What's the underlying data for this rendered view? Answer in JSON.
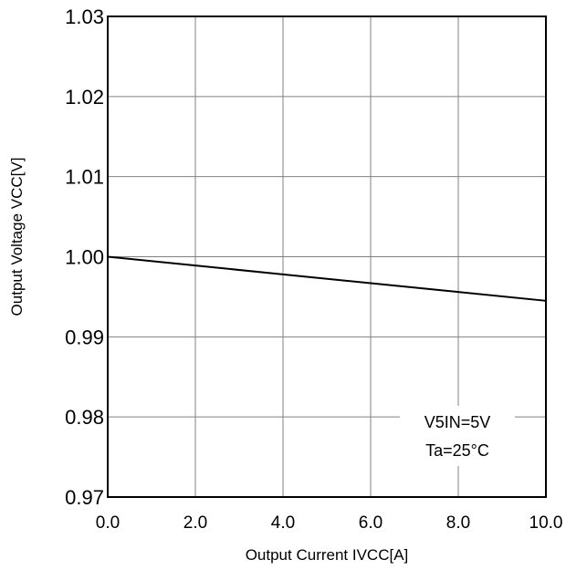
{
  "chart_data": {
    "type": "line",
    "xlabel": "Output Current IVCC[A]",
    "ylabel": "Output Voltage VCC[V]",
    "xlim": [
      0,
      10
    ],
    "ylim": [
      0.97,
      1.03
    ],
    "x_ticks": [
      "0.0",
      "2.0",
      "4.0",
      "6.0",
      "8.0",
      "10.0"
    ],
    "y_ticks": [
      "0.97",
      "0.98",
      "0.99",
      "1.00",
      "1.01",
      "1.02",
      "1.03"
    ],
    "grid": true,
    "series": [
      {
        "x": [
          0,
          2,
          4,
          6,
          8,
          10
        ],
        "y": [
          1.0,
          0.9989,
          0.9978,
          0.9967,
          0.9956,
          0.9945
        ]
      }
    ],
    "annotations": [
      "V5IN=5V",
      "Ta=25°C"
    ],
    "colors": {
      "line": "#000000",
      "grid": "#808080",
      "frame": "#000000"
    }
  }
}
